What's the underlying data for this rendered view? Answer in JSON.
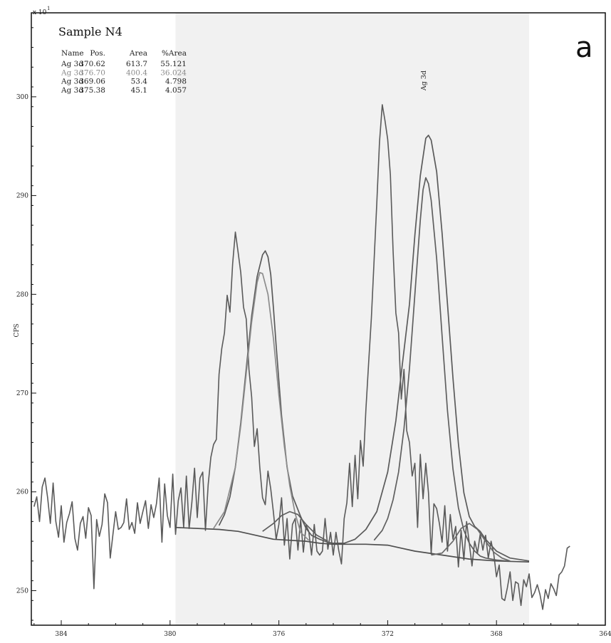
{
  "chart_data": {
    "type": "line",
    "title": "Sample N4",
    "panel_label": "a",
    "xlabel": "",
    "ylabel": "CPS",
    "y_multiplier": "x 10",
    "y_multiplier_exponent": "1",
    "xlim": [
      385.1,
      364.0
    ],
    "ylim": [
      246.5,
      308.5
    ],
    "x_ticks": [
      384,
      380,
      376,
      372,
      368,
      364
    ],
    "y_ticks": [
      250,
      260,
      270,
      280,
      290,
      300
    ],
    "fit_region": [
      379.8,
      366.8
    ],
    "peak_label": {
      "text": "Ag 3d",
      "x": 370.6,
      "y": 300.2
    },
    "table": {
      "headers": [
        "Name",
        "Pos.",
        "Area",
        "%Area"
      ],
      "rows": [
        {
          "name": "Ag 3d",
          "pos": "370.62",
          "area": "613.7",
          "pct": "55.121",
          "shade": "dark"
        },
        {
          "name": "Ag 3d",
          "pos": "376.70",
          "area": "400.4",
          "pct": "36.024",
          "shade": "light"
        },
        {
          "name": "Ag 3d",
          "pos": "369.06",
          "area": "53.4",
          "pct": "4.798",
          "shade": "dark"
        },
        {
          "name": "Ag 3d",
          "pos": "375.38",
          "area": "45.1",
          "pct": "4.057",
          "shade": "dark"
        }
      ]
    },
    "series": [
      {
        "role": "raw",
        "color": "#5a5a5a",
        "x_start": 385.0,
        "x_step": -0.1,
        "values": [
          258.5,
          259.5,
          257.0,
          260.5,
          261.4,
          259.4,
          256.8,
          260.9,
          257.0,
          255.4,
          258.6,
          254.9,
          256.9,
          257.8,
          259.0,
          255.3,
          254.1,
          256.8,
          257.5,
          255.3,
          258.4,
          257.6,
          250.2,
          257.2,
          255.5,
          256.7,
          259.8,
          258.9,
          253.3,
          255.7,
          258.0,
          256.2,
          256.4,
          256.9,
          259.3,
          256.2,
          256.9,
          255.8,
          258.9,
          256.8,
          258.0,
          259.1,
          256.3,
          258.7,
          257.4,
          258.8,
          261.4,
          254.9,
          260.8,
          257.6,
          256.4,
          261.8,
          255.7,
          259.1,
          260.4,
          256.4,
          261.6,
          256.3,
          258.9,
          262.4,
          257.4,
          261.4,
          262.0,
          256.1,
          260.7,
          263.5,
          264.8,
          265.3,
          271.9,
          274.5,
          276.1,
          279.9,
          278.2,
          283.1,
          286.3,
          284.3,
          282.2,
          278.7,
          277.5,
          272.4,
          269.6,
          264.6,
          266.4,
          262.4,
          259.4,
          258.7,
          262.1,
          260.3,
          257.9,
          255.2,
          256.7,
          259.4,
          254.6,
          257.3,
          253.2,
          256.7,
          257.3,
          254.1,
          257.2,
          253.9,
          256.6,
          256.0,
          253.6,
          256.7,
          254.0,
          253.6,
          254.0,
          257.3,
          254.2,
          255.9,
          253.6,
          255.9,
          254.1,
          252.7,
          257.3,
          258.9,
          262.9,
          258.5,
          263.7,
          259.3,
          265.2,
          262.6,
          268.3,
          273.1,
          277.6,
          283.4,
          289.2,
          295.4,
          299.2,
          297.6,
          295.7,
          292.1,
          284.4,
          278.1,
          276.1,
          269.4,
          272.4,
          266.2,
          265.0,
          261.6,
          262.9,
          256.4,
          263.8,
          259.3,
          262.9,
          259.9,
          253.7,
          258.8,
          258.3,
          256.8,
          254.9,
          258.6,
          254.0,
          257.7,
          255.2,
          256.5,
          252.4,
          256.1,
          253.1,
          257.0,
          254.8,
          252.5,
          255.0,
          253.8,
          255.7,
          254.1,
          255.6,
          253.3,
          255.0,
          253.7,
          251.4,
          252.6,
          249.2,
          249.0,
          250.3,
          251.9,
          249.0,
          250.9,
          250.7,
          248.5,
          251.1,
          250.4,
          251.7,
          249.3,
          249.8,
          250.6,
          249.6,
          248.1,
          250.1,
          249.2,
          250.7,
          250.2,
          249.5,
          251.6,
          251.9,
          252.5,
          254.3,
          254.5
        ]
      },
      {
        "role": "baseline",
        "color": "#4f4f4f",
        "x": [
          379.8,
          378.2,
          377.5,
          377.0,
          376.2,
          375.0,
          374.5,
          374.0,
          372.8,
          372.0,
          371.5,
          371.0,
          370.0,
          369.0,
          368.0,
          366.8
        ],
        "values": [
          256.4,
          256.2,
          256.0,
          255.7,
          255.2,
          255.0,
          254.8,
          254.7,
          254.7,
          254.6,
          254.3,
          254.0,
          253.6,
          253.2,
          253.0,
          252.9
        ]
      },
      {
        "role": "fit-envelope",
        "color": "#5a5a5a",
        "x": [
          378.2,
          378.0,
          377.8,
          377.6,
          377.4,
          377.2,
          377.0,
          376.8,
          376.6,
          376.5,
          376.4,
          376.3,
          376.2,
          376.1,
          375.9,
          375.7,
          375.5,
          375.2,
          375.0,
          374.8,
          374.5,
          374.2,
          374.0,
          373.6,
          373.2,
          372.8,
          372.4,
          372.0,
          371.7,
          371.5,
          371.2,
          371.0,
          370.8,
          370.6,
          370.5,
          370.4,
          370.2,
          370.0,
          369.8,
          369.6,
          369.4,
          369.2,
          369.0,
          368.8,
          368.6,
          368.4,
          368.0,
          367.5,
          366.8
        ],
        "values": [
          256.6,
          257.7,
          259.5,
          262.5,
          267.0,
          272.5,
          277.8,
          281.8,
          284.0,
          284.4,
          283.8,
          282.0,
          278.6,
          274.8,
          267.7,
          262.5,
          259.6,
          257.5,
          256.3,
          255.6,
          255.2,
          254.9,
          254.8,
          254.8,
          255.2,
          256.2,
          258.0,
          262.0,
          267.2,
          272.0,
          279.0,
          286.0,
          292.0,
          295.8,
          296.1,
          295.6,
          292.4,
          286.2,
          279.0,
          271.5,
          264.9,
          259.9,
          257.5,
          256.5,
          256.0,
          255.2,
          254.0,
          253.3,
          253.0
        ]
      },
      {
        "role": "component-1",
        "color": "#8c8c8c",
        "x": [
          378.4,
          378.0,
          377.6,
          377.4,
          377.2,
          377.0,
          376.8,
          376.7,
          376.6,
          376.4,
          376.2,
          376.0,
          375.8,
          375.6,
          375.4,
          375.2,
          374.9
        ],
        "values": [
          256.3,
          258.0,
          262.5,
          266.7,
          272.0,
          277.2,
          281.2,
          282.2,
          282.1,
          280.0,
          275.5,
          269.8,
          264.6,
          260.6,
          257.8,
          255.9,
          255.1
        ]
      },
      {
        "role": "component-2",
        "color": "#5f5f5f",
        "x": [
          372.5,
          372.2,
          372.0,
          371.8,
          371.6,
          371.4,
          371.2,
          371.0,
          370.8,
          370.7,
          370.6,
          370.5,
          370.4,
          370.2,
          370.0,
          369.8,
          369.6,
          369.4,
          369.2,
          369.0,
          368.8,
          368.6,
          368.4,
          368.0,
          367.6
        ],
        "values": [
          255.1,
          256.1,
          257.3,
          259.2,
          262.0,
          266.4,
          272.5,
          280.0,
          287.5,
          290.6,
          291.8,
          291.2,
          289.5,
          283.6,
          275.8,
          268.2,
          262.3,
          258.4,
          256.1,
          254.8,
          254.0,
          253.5,
          253.3,
          253.1,
          253.0
        ]
      },
      {
        "role": "component-3",
        "color": "#6a6a6a",
        "x": [
          370.4,
          370.0,
          369.6,
          369.3,
          369.0,
          368.7,
          368.4,
          368.1,
          367.8,
          367.5
        ],
        "values": [
          253.6,
          253.8,
          255.0,
          256.3,
          256.8,
          256.2,
          255.0,
          253.9,
          253.3,
          253.0
        ]
      },
      {
        "role": "component-4",
        "color": "#5f5f5f",
        "x": [
          376.6,
          376.2,
          375.9,
          375.6,
          375.3,
          375.0,
          374.6,
          374.2
        ],
        "values": [
          256.0,
          256.8,
          257.6,
          258.0,
          257.7,
          256.7,
          255.6,
          255.0
        ]
      }
    ]
  }
}
